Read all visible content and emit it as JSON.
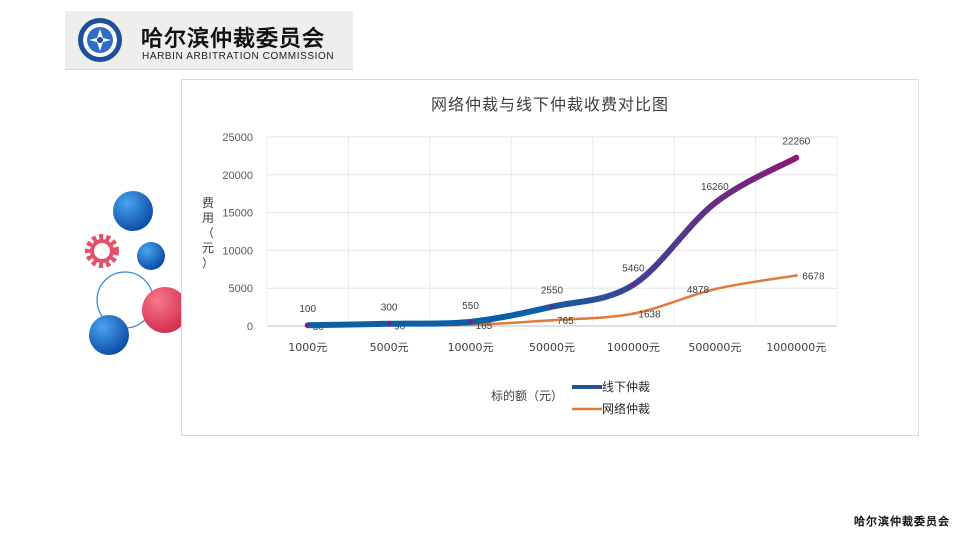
{
  "header": {
    "org_name_cn": "哈尔滨仲裁委员会",
    "org_name_en": "HARBIN ARBITRATION COMMISSION"
  },
  "footer": {
    "text": "哈尔滨仲裁委员会"
  },
  "chart_data": {
    "type": "line",
    "title": "网络仲裁与线下仲裁收费对比图",
    "xlabel": "标的额（元）",
    "ylabel": "费用（元）",
    "categories": [
      "1000元",
      "5000元",
      "10000元",
      "50000元",
      "100000元",
      "500000元",
      "1000000元"
    ],
    "ylim": [
      0,
      25000
    ],
    "yticks": [
      0,
      5000,
      10000,
      15000,
      20000,
      25000
    ],
    "grid": true,
    "legend_position": "bottom",
    "series": [
      {
        "name": "线下仲裁",
        "values": [
          100,
          300,
          550,
          2550,
          5460,
          16260,
          22260
        ],
        "labels": [
          "100",
          "300",
          "550",
          "2550",
          "5460",
          "16260",
          "22260"
        ],
        "color_start": "#0b5fa5",
        "color_end": "#8e1873"
      },
      {
        "name": "网络仲裁",
        "values": [
          30,
          90,
          165,
          765,
          1638,
          4878,
          6678
        ],
        "labels": [
          "30",
          "90",
          "165",
          "765",
          "1638",
          "4878",
          "6678"
        ],
        "color": "#e07b39"
      }
    ]
  }
}
